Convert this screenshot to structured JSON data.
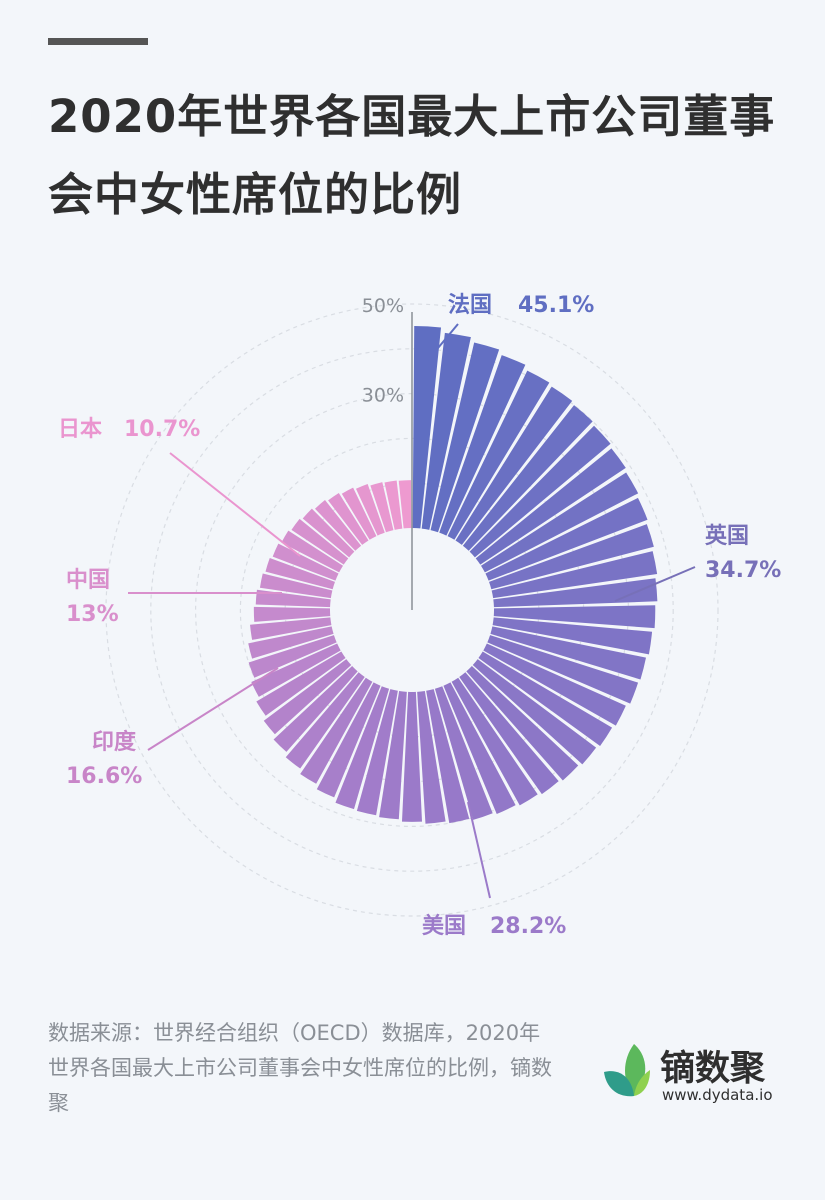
{
  "title": "2020年世界各国最大上市公司董事会中女性席位的比例",
  "source": "数据来源：世界经合组织（OECD）数据库，2020年世界各国最大上市公司董事会中女性席位的比例，镝数聚",
  "brand": {
    "name": "镝数聚",
    "url": "www.dydata.io",
    "logo_icon": "leaf-logo-icon"
  },
  "colors": {
    "start": "#5f6ec2",
    "mid": "#9b7ac9",
    "end": "#ee9ad0",
    "grid": "#d9dde3",
    "axis": "#8a8f96"
  },
  "chart_data": {
    "type": "bar",
    "layout": "polar",
    "title": "2020年世界各国最大上市公司董事会中女性席位的比例",
    "yticks": [
      "30%",
      "50%"
    ],
    "ylim": [
      0,
      50
    ],
    "grid": true,
    "labeled": [
      {
        "name": "法国",
        "value": "45.1%"
      },
      {
        "name": "英国",
        "value": "34.7%"
      },
      {
        "name": "美国",
        "value": "28.2%"
      },
      {
        "name": "印度",
        "value": "16.6%"
      },
      {
        "name": "中国",
        "value": "13%"
      },
      {
        "name": "日本",
        "value": "10.7%"
      }
    ],
    "values": [
      45.1,
      44.0,
      43.0,
      42.0,
      41.0,
      40.5,
      40.0,
      39.5,
      39.0,
      38.5,
      38.0,
      37.5,
      37.0,
      36.5,
      36.0,
      35.5,
      35.0,
      34.7,
      34.0,
      33.5,
      33.0,
      32.5,
      32.0,
      31.5,
      31.0,
      30.5,
      30.0,
      29.5,
      29.0,
      28.5,
      28.2,
      28.0,
      27.0,
      26.0,
      25.0,
      24.0,
      23.0,
      22.0,
      21.0,
      20.0,
      19.0,
      18.0,
      17.0,
      16.6,
      16.0,
      15.5,
      15.0,
      14.5,
      14.0,
      13.5,
      13.0,
      12.5,
      12.0,
      11.5,
      11.0,
      10.8,
      10.7
    ]
  }
}
